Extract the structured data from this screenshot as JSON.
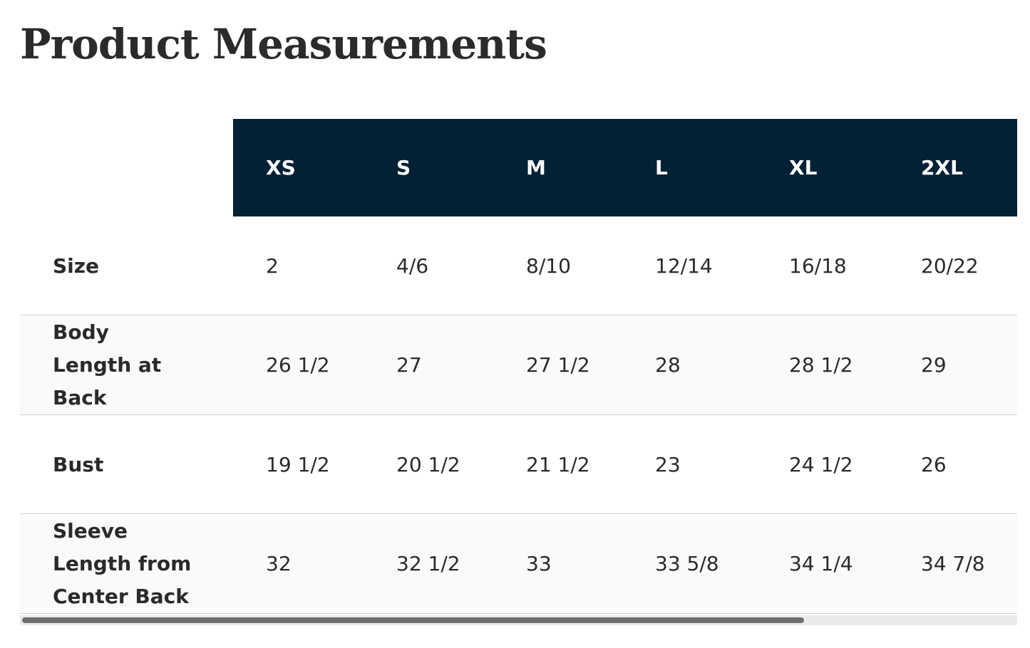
{
  "title": "Product Measurements",
  "table": {
    "header": [
      "XS",
      "S",
      "M",
      "L",
      "XL",
      "2XL"
    ],
    "rows": [
      {
        "label": "Size",
        "cells": [
          "2",
          "4/6",
          "8/10",
          "12/14",
          "16/18",
          "20/22"
        ]
      },
      {
        "label": "Body Length at Back",
        "cells": [
          "26 1/2",
          "27",
          "27 1/2",
          "28",
          "28 1/2",
          "29"
        ]
      },
      {
        "label": "Bust",
        "cells": [
          "19 1/2",
          "20 1/2",
          "21 1/2",
          "23",
          "24 1/2",
          "26"
        ]
      },
      {
        "label": "Sleeve Length from Center Back",
        "cells": [
          "32",
          "32 1/2",
          "33",
          "33 5/8",
          "34 1/4",
          "34 7/8"
        ]
      }
    ]
  }
}
